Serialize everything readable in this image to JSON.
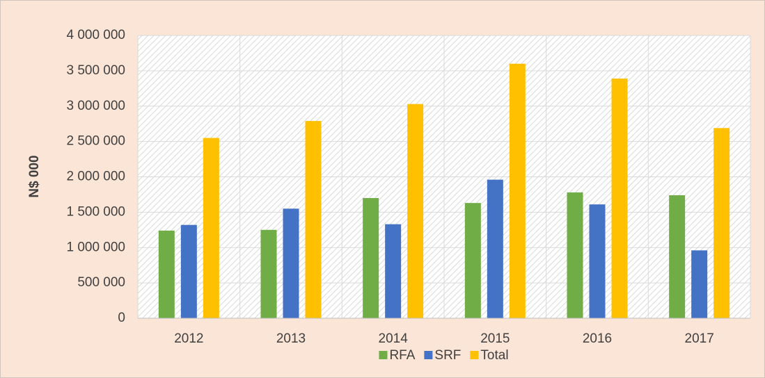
{
  "chart_data": {
    "type": "bar",
    "y_label": "N$ 000",
    "categories": [
      "2012",
      "2013",
      "2014",
      "2015",
      "2016",
      "2017"
    ],
    "series": [
      {
        "name": "RFA",
        "color": "#70ad47",
        "values": [
          1240000,
          1250000,
          1700000,
          1630000,
          1780000,
          1740000
        ]
      },
      {
        "name": "SRF",
        "color": "#4472c4",
        "values": [
          1320000,
          1550000,
          1330000,
          1960000,
          1610000,
          960000
        ]
      },
      {
        "name": "Total",
        "color": "#ffc000",
        "values": [
          2550000,
          2790000,
          3030000,
          3600000,
          3390000,
          2690000
        ]
      }
    ],
    "ylim": [
      0,
      4000000
    ],
    "yticks": [
      {
        "value": 0,
        "label": "0"
      },
      {
        "value": 500000,
        "label": "500 000"
      },
      {
        "value": 1000000,
        "label": "1 000 000"
      },
      {
        "value": 1500000,
        "label": "1 500 000"
      },
      {
        "value": 2000000,
        "label": "2 000 000"
      },
      {
        "value": 2500000,
        "label": "2 500 000"
      },
      {
        "value": 3000000,
        "label": "3 000 000"
      },
      {
        "value": 3500000,
        "label": "3 500 000"
      },
      {
        "value": 4000000,
        "label": "4 000 000"
      }
    ],
    "grid": true,
    "legend": "bottom"
  }
}
